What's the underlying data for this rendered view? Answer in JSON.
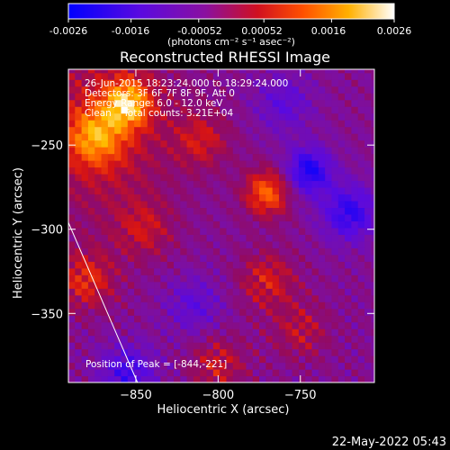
{
  "colorbar": {
    "tick_labels": [
      "-0.0026",
      "-0.0016",
      "-0.00052",
      "0.00052",
      "0.0016",
      "0.0026"
    ],
    "unit_label": "(photons cm⁻² s⁻¹ asec⁻²)",
    "range": [
      -0.0026,
      0.0026
    ]
  },
  "header": {
    "title": "Reconstructed RHESSI Image"
  },
  "annotations": {
    "line1": "26-Jun-2015 18:23:24.000 to 18:29:24.000",
    "line2": "Detectors: 3F 6F 7F 8F 9F, Att 0",
    "line3": "Energy Range: 6.0 - 12.0 keV",
    "line4": "Clean    Total counts: 3.21E+04",
    "peak": "Position of Peak = [-844,-221]"
  },
  "footer": {
    "timestamp": "22-May-2022 05:43"
  },
  "chart_data": {
    "type": "heatmap",
    "title": "Reconstructed RHESSI Image",
    "xlabel": "Heliocentric X (arcsec)",
    "ylabel": "Heliocentric Y (arcsec)",
    "xlim": [
      -891,
      -705
    ],
    "ylim": [
      -391,
      -205
    ],
    "x_ticks": [
      -850,
      -800,
      -750
    ],
    "y_ticks": [
      -250,
      -300,
      -350
    ],
    "x_tick_labels": [
      "−850",
      "−800",
      "−750"
    ],
    "y_tick_labels": [
      "−250",
      "−300",
      "−350"
    ],
    "colorscale": "red-temperature (blue-purple-red-orange-yellow-white)",
    "peak_position": [
      -844,
      -221
    ],
    "limb_line": [
      [
        -891,
        -296
      ],
      [
        -849,
        -391
      ]
    ],
    "bright_sources": [
      {
        "x": -855,
        "y": -225,
        "level": 0.75
      },
      {
        "x": -875,
        "y": -245,
        "level": 0.55
      },
      {
        "x": -770,
        "y": -278,
        "level": 0.65
      },
      {
        "x": -810,
        "y": -247,
        "level": 0.35
      },
      {
        "x": -770,
        "y": -330,
        "level": 0.4
      },
      {
        "x": -880,
        "y": -330,
        "level": 0.45
      },
      {
        "x": -845,
        "y": -300,
        "level": 0.3
      },
      {
        "x": -800,
        "y": -380,
        "level": 0.35
      },
      {
        "x": -750,
        "y": -360,
        "level": 0.3
      }
    ],
    "cold_sources": [
      {
        "x": -745,
        "y": -265,
        "level": -0.7
      },
      {
        "x": -720,
        "y": -290,
        "level": -0.6
      },
      {
        "x": -855,
        "y": -385,
        "level": -0.5
      },
      {
        "x": -815,
        "y": -345,
        "level": -0.35
      },
      {
        "x": -760,
        "y": -225,
        "level": -0.35
      }
    ]
  }
}
